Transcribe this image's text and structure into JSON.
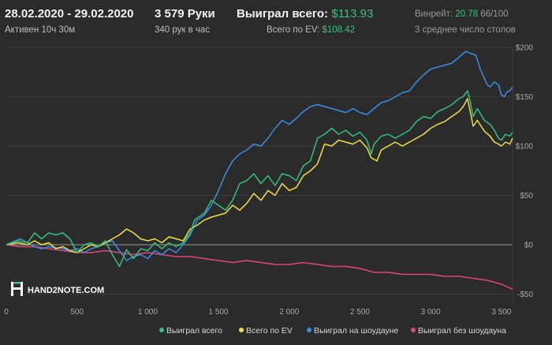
{
  "header": {
    "date_range": "28.02.2020 - 29.02.2020",
    "active_time": "Активен 10ч 30м",
    "hands": "3 579 Руки",
    "hands_per_hour": "340 рук в час",
    "won_total_label": "Выиграл всего:",
    "won_total_value": "$113.93",
    "ev_total_label": "Всего по EV:",
    "ev_total_value": "$108.42",
    "winrate_label": "Винрейт:",
    "winrate_value": "20.78",
    "winrate_suffix": "66/100",
    "avg_tables": "3 среднее число столов"
  },
  "logo": {
    "text": "HAND2NOTE.COM"
  },
  "colors": {
    "background": "#2b2b2b",
    "won_total": "#2ec27e",
    "ev": "#f0e040",
    "showdown": "#3a8ee6",
    "no_showdown": "#e0457b",
    "zero_line": "#9a9a9a",
    "grid": "#3c3c3c"
  },
  "chart_data": {
    "type": "line",
    "x_ticks": [
      0,
      500,
      1000,
      1500,
      2000,
      2500,
      3000,
      3500
    ],
    "x_tick_labels": [
      "0",
      "500",
      "1 000",
      "1 500",
      "2 000",
      "2 500",
      "3 000",
      "3 500"
    ],
    "y_ticks": [
      -50,
      0,
      50,
      100,
      150,
      200
    ],
    "y_tick_labels": [
      "-$50",
      "$0",
      "$50",
      "$100",
      "$150",
      "$200"
    ],
    "xlim": [
      0,
      3579
    ],
    "ylim": [
      -60,
      200
    ],
    "grid": true,
    "legend_position": "bottom-right",
    "series": [
      {
        "name": "Выиграл всего",
        "color": "#2ec27e",
        "points": [
          [
            0,
            0
          ],
          [
            80,
            4
          ],
          [
            150,
            2
          ],
          [
            200,
            12
          ],
          [
            250,
            6
          ],
          [
            300,
            12
          ],
          [
            350,
            10
          ],
          [
            400,
            12
          ],
          [
            450,
            6
          ],
          [
            500,
            -8
          ],
          [
            550,
            0
          ],
          [
            600,
            2
          ],
          [
            650,
            -2
          ],
          [
            700,
            4
          ],
          [
            750,
            -10
          ],
          [
            800,
            -22
          ],
          [
            850,
            -5
          ],
          [
            900,
            -14
          ],
          [
            950,
            -4
          ],
          [
            1000,
            -6
          ],
          [
            1050,
            2
          ],
          [
            1100,
            -4
          ],
          [
            1150,
            2
          ],
          [
            1200,
            -2
          ],
          [
            1250,
            2
          ],
          [
            1300,
            12
          ],
          [
            1330,
            25
          ],
          [
            1400,
            32
          ],
          [
            1450,
            45
          ],
          [
            1500,
            40
          ],
          [
            1550,
            35
          ],
          [
            1600,
            45
          ],
          [
            1650,
            62
          ],
          [
            1700,
            65
          ],
          [
            1750,
            72
          ],
          [
            1800,
            62
          ],
          [
            1850,
            70
          ],
          [
            1900,
            60
          ],
          [
            1950,
            72
          ],
          [
            2000,
            70
          ],
          [
            2050,
            65
          ],
          [
            2100,
            80
          ],
          [
            2150,
            85
          ],
          [
            2200,
            108
          ],
          [
            2250,
            112
          ],
          [
            2300,
            118
          ],
          [
            2350,
            112
          ],
          [
            2400,
            116
          ],
          [
            2450,
            110
          ],
          [
            2500,
            114
          ],
          [
            2550,
            106
          ],
          [
            2580,
            92
          ],
          [
            2600,
            102
          ],
          [
            2650,
            110
          ],
          [
            2700,
            112
          ],
          [
            2750,
            108
          ],
          [
            2800,
            112
          ],
          [
            2850,
            116
          ],
          [
            2900,
            125
          ],
          [
            2950,
            130
          ],
          [
            3000,
            128
          ],
          [
            3050,
            135
          ],
          [
            3100,
            138
          ],
          [
            3150,
            142
          ],
          [
            3200,
            148
          ],
          [
            3230,
            150
          ],
          [
            3260,
            156
          ],
          [
            3280,
            145
          ],
          [
            3300,
            130
          ],
          [
            3330,
            138
          ],
          [
            3380,
            126
          ],
          [
            3420,
            122
          ],
          [
            3450,
            116
          ],
          [
            3480,
            108
          ],
          [
            3500,
            106
          ],
          [
            3530,
            112
          ],
          [
            3560,
            110
          ],
          [
            3579,
            114
          ]
        ]
      },
      {
        "name": "Всего по EV",
        "color": "#f0e040",
        "points": [
          [
            0,
            0
          ],
          [
            80,
            2
          ],
          [
            150,
            0
          ],
          [
            200,
            4
          ],
          [
            250,
            0
          ],
          [
            300,
            2
          ],
          [
            350,
            -4
          ],
          [
            400,
            -2
          ],
          [
            450,
            -6
          ],
          [
            500,
            -8
          ],
          [
            550,
            -4
          ],
          [
            600,
            0
          ],
          [
            650,
            -2
          ],
          [
            700,
            2
          ],
          [
            750,
            6
          ],
          [
            800,
            10
          ],
          [
            850,
            16
          ],
          [
            900,
            12
          ],
          [
            950,
            6
          ],
          [
            1000,
            4
          ],
          [
            1050,
            6
          ],
          [
            1100,
            2
          ],
          [
            1150,
            8
          ],
          [
            1200,
            6
          ],
          [
            1250,
            4
          ],
          [
            1300,
            16
          ],
          [
            1350,
            20
          ],
          [
            1400,
            25
          ],
          [
            1450,
            28
          ],
          [
            1500,
            30
          ],
          [
            1550,
            32
          ],
          [
            1600,
            40
          ],
          [
            1650,
            35
          ],
          [
            1700,
            42
          ],
          [
            1750,
            52
          ],
          [
            1800,
            45
          ],
          [
            1850,
            55
          ],
          [
            1900,
            50
          ],
          [
            1950,
            62
          ],
          [
            2000,
            55
          ],
          [
            2050,
            58
          ],
          [
            2100,
            70
          ],
          [
            2150,
            75
          ],
          [
            2200,
            82
          ],
          [
            2250,
            102
          ],
          [
            2300,
            100
          ],
          [
            2350,
            106
          ],
          [
            2400,
            104
          ],
          [
            2450,
            102
          ],
          [
            2500,
            106
          ],
          [
            2550,
            98
          ],
          [
            2580,
            88
          ],
          [
            2620,
            85
          ],
          [
            2650,
            96
          ],
          [
            2700,
            100
          ],
          [
            2750,
            104
          ],
          [
            2800,
            100
          ],
          [
            2850,
            104
          ],
          [
            2900,
            108
          ],
          [
            2950,
            112
          ],
          [
            3000,
            118
          ],
          [
            3050,
            122
          ],
          [
            3100,
            125
          ],
          [
            3150,
            130
          ],
          [
            3200,
            135
          ],
          [
            3230,
            140
          ],
          [
            3260,
            148
          ],
          [
            3280,
            135
          ],
          [
            3300,
            120
          ],
          [
            3330,
            126
          ],
          [
            3380,
            115
          ],
          [
            3420,
            110
          ],
          [
            3450,
            104
          ],
          [
            3480,
            102
          ],
          [
            3500,
            100
          ],
          [
            3530,
            104
          ],
          [
            3560,
            102
          ],
          [
            3579,
            108
          ]
        ]
      },
      {
        "name": "Выиграл на шоудауне",
        "color": "#3a8ee6",
        "points": [
          [
            0,
            0
          ],
          [
            100,
            6
          ],
          [
            150,
            2
          ],
          [
            200,
            -2
          ],
          [
            250,
            -4
          ],
          [
            300,
            -2
          ],
          [
            400,
            -4
          ],
          [
            450,
            -6
          ],
          [
            500,
            -4
          ],
          [
            550,
            -8
          ],
          [
            600,
            -4
          ],
          [
            650,
            -2
          ],
          [
            700,
            2
          ],
          [
            750,
            4
          ],
          [
            800,
            -6
          ],
          [
            850,
            -16
          ],
          [
            900,
            -12
          ],
          [
            950,
            -10
          ],
          [
            1000,
            -14
          ],
          [
            1050,
            -6
          ],
          [
            1100,
            -10
          ],
          [
            1150,
            -4
          ],
          [
            1200,
            -8
          ],
          [
            1250,
            0
          ],
          [
            1300,
            10
          ],
          [
            1350,
            25
          ],
          [
            1400,
            30
          ],
          [
            1450,
            40
          ],
          [
            1500,
            55
          ],
          [
            1550,
            72
          ],
          [
            1600,
            85
          ],
          [
            1650,
            92
          ],
          [
            1700,
            96
          ],
          [
            1750,
            102
          ],
          [
            1800,
            100
          ],
          [
            1850,
            108
          ],
          [
            1900,
            118
          ],
          [
            1950,
            126
          ],
          [
            2000,
            122
          ],
          [
            2050,
            128
          ],
          [
            2100,
            135
          ],
          [
            2150,
            140
          ],
          [
            2200,
            142
          ],
          [
            2250,
            140
          ],
          [
            2300,
            138
          ],
          [
            2350,
            136
          ],
          [
            2400,
            134
          ],
          [
            2450,
            138
          ],
          [
            2500,
            134
          ],
          [
            2550,
            132
          ],
          [
            2600,
            138
          ],
          [
            2650,
            144
          ],
          [
            2700,
            146
          ],
          [
            2750,
            150
          ],
          [
            2800,
            154
          ],
          [
            2850,
            156
          ],
          [
            2900,
            165
          ],
          [
            2950,
            172
          ],
          [
            3000,
            178
          ],
          [
            3050,
            180
          ],
          [
            3100,
            182
          ],
          [
            3150,
            184
          ],
          [
            3200,
            190
          ],
          [
            3250,
            196
          ],
          [
            3280,
            194
          ],
          [
            3320,
            192
          ],
          [
            3350,
            178
          ],
          [
            3400,
            162
          ],
          [
            3420,
            160
          ],
          [
            3450,
            165
          ],
          [
            3480,
            162
          ],
          [
            3500,
            152
          ],
          [
            3520,
            150
          ],
          [
            3540,
            155
          ],
          [
            3560,
            156
          ],
          [
            3579,
            160
          ]
        ]
      },
      {
        "name": "Выиграл без шоудауна",
        "color": "#e0457b",
        "points": [
          [
            0,
            0
          ],
          [
            100,
            -2
          ],
          [
            200,
            -2
          ],
          [
            300,
            -4
          ],
          [
            400,
            -6
          ],
          [
            500,
            -8
          ],
          [
            600,
            -8
          ],
          [
            700,
            -6
          ],
          [
            800,
            -8
          ],
          [
            900,
            -10
          ],
          [
            1000,
            -8
          ],
          [
            1100,
            -10
          ],
          [
            1200,
            -12
          ],
          [
            1300,
            -12
          ],
          [
            1400,
            -14
          ],
          [
            1500,
            -16
          ],
          [
            1600,
            -18
          ],
          [
            1700,
            -16
          ],
          [
            1800,
            -18
          ],
          [
            1900,
            -20
          ],
          [
            2000,
            -20
          ],
          [
            2100,
            -18
          ],
          [
            2200,
            -20
          ],
          [
            2300,
            -22
          ],
          [
            2400,
            -22
          ],
          [
            2500,
            -24
          ],
          [
            2550,
            -26
          ],
          [
            2600,
            -28
          ],
          [
            2700,
            -28
          ],
          [
            2800,
            -30
          ],
          [
            2900,
            -30
          ],
          [
            3000,
            -30
          ],
          [
            3100,
            -32
          ],
          [
            3200,
            -32
          ],
          [
            3300,
            -34
          ],
          [
            3400,
            -36
          ],
          [
            3500,
            -40
          ],
          [
            3579,
            -45
          ]
        ]
      }
    ]
  }
}
